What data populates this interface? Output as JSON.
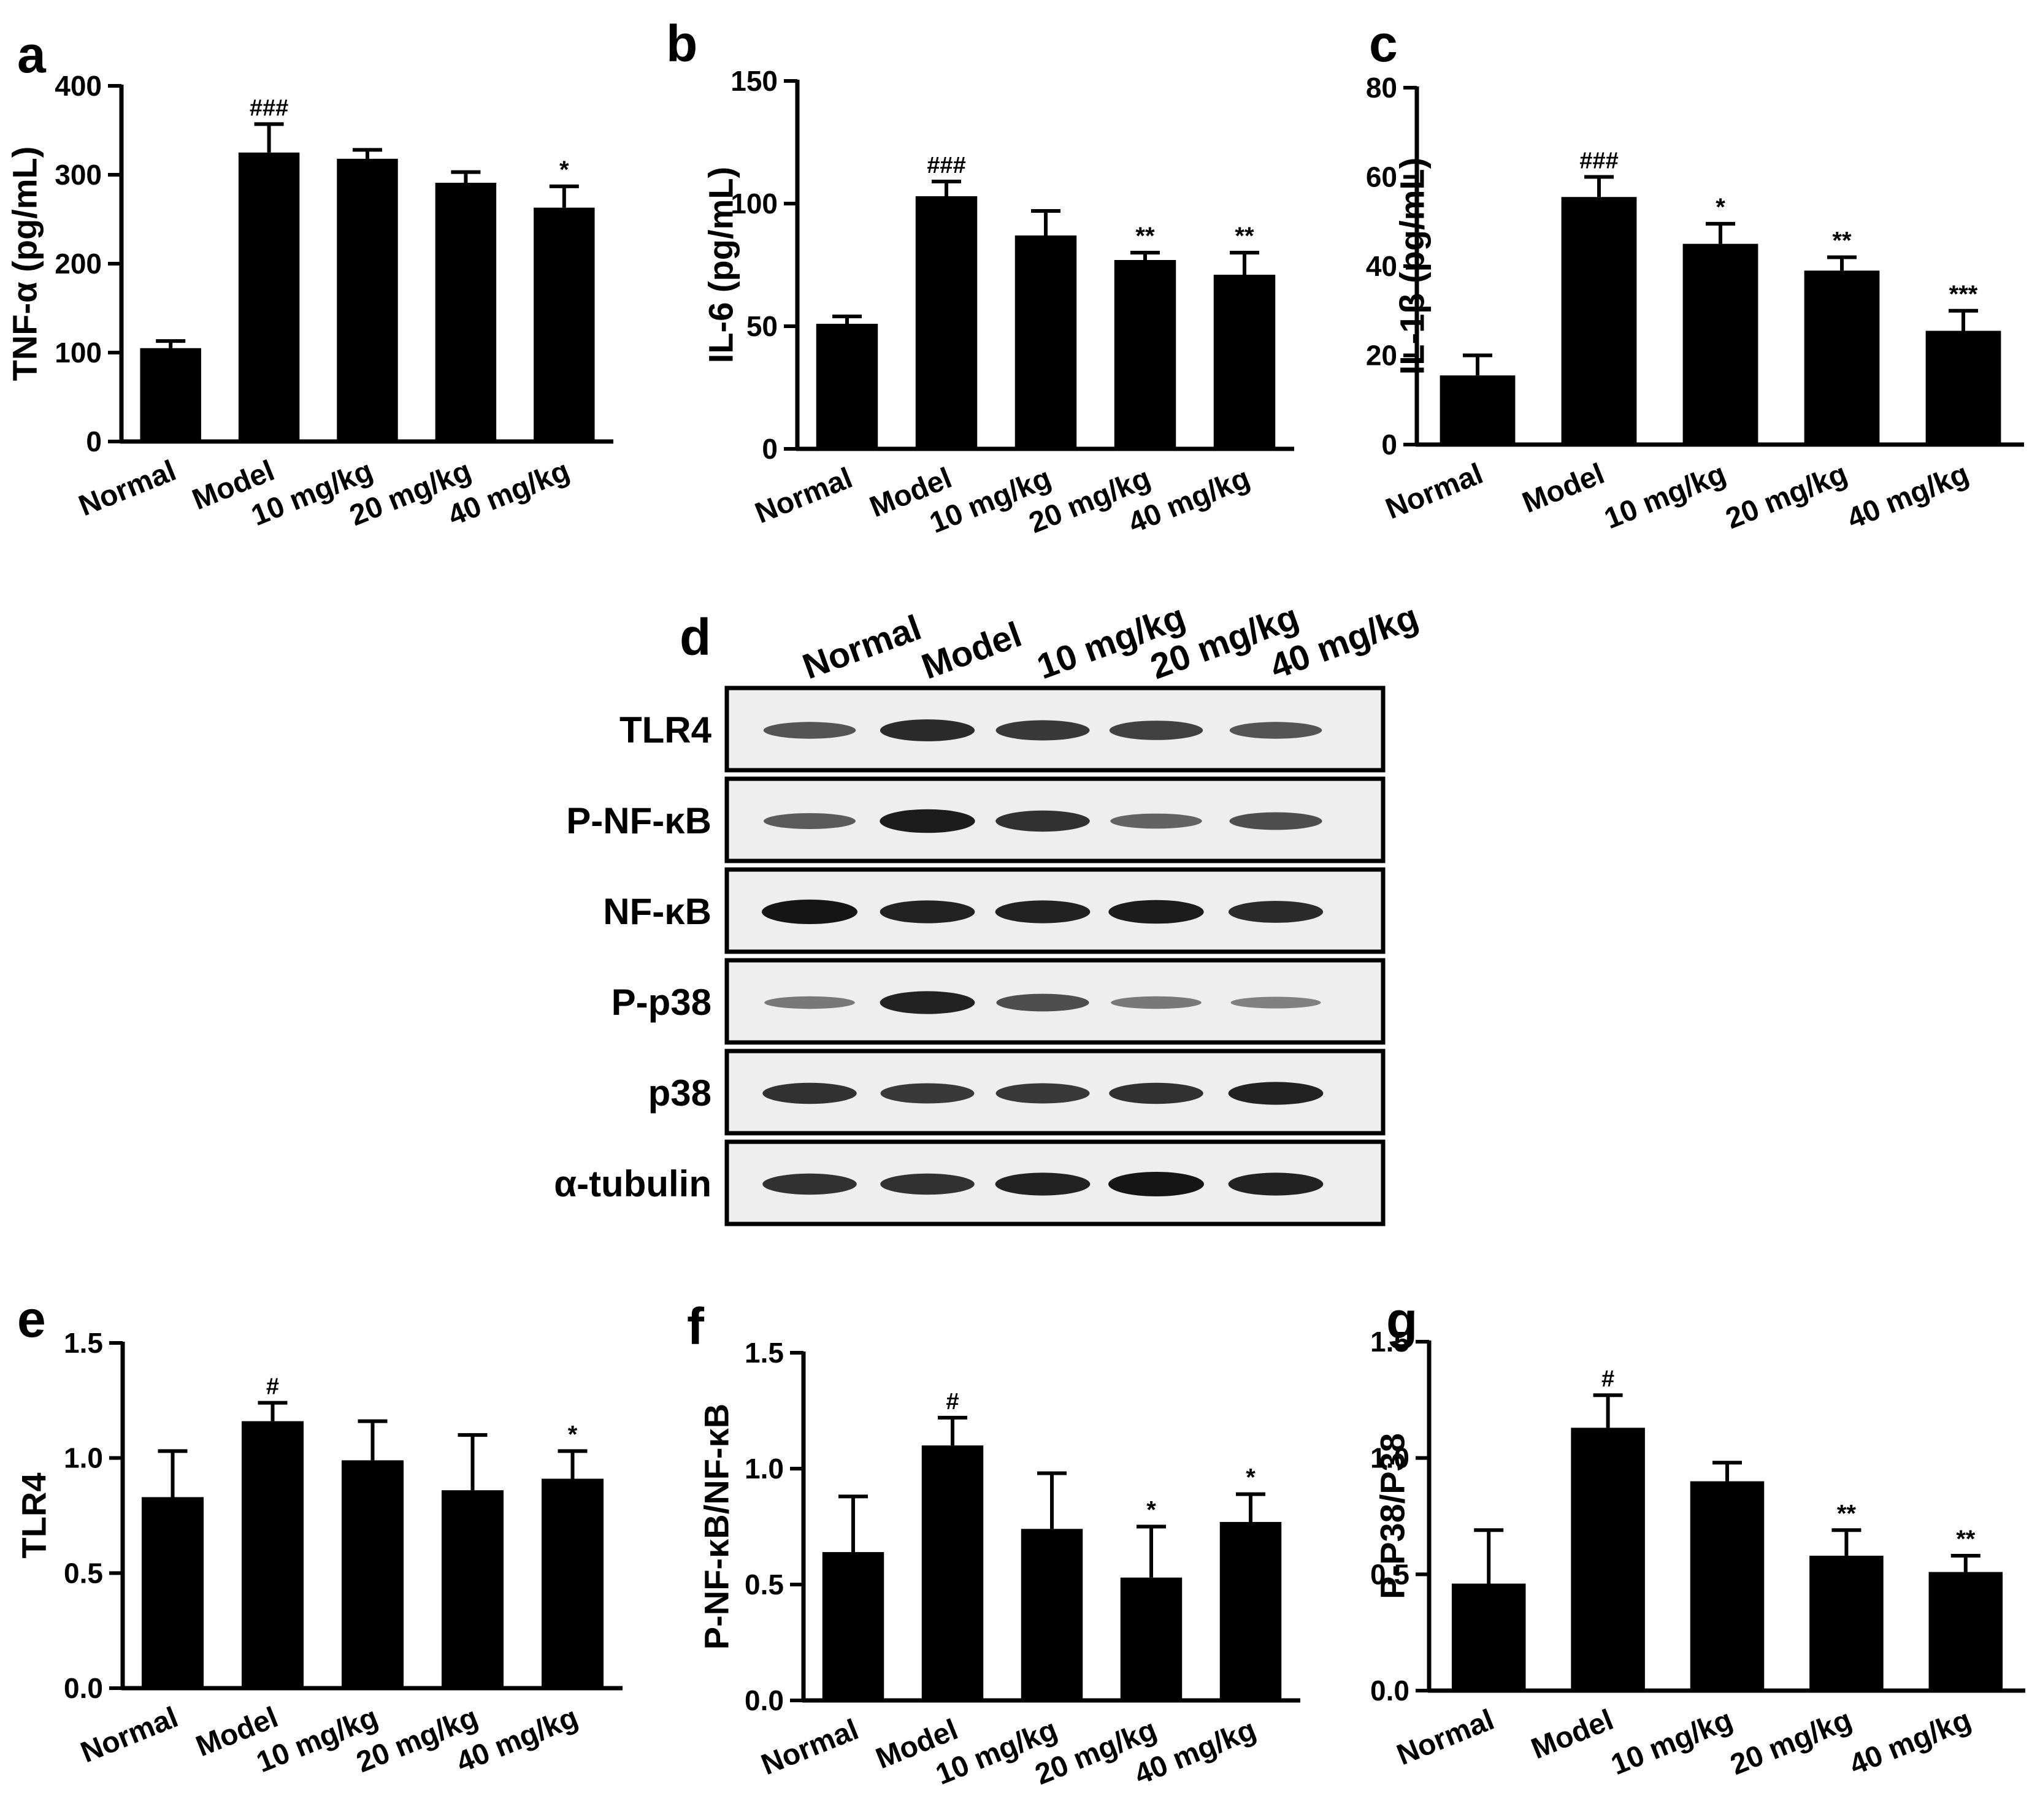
{
  "colors": {
    "bar": "#000000",
    "axis": "#000000",
    "blot_bg": "#eeeeee",
    "band": "#151515"
  },
  "chart_data": [
    {
      "panel": "a",
      "type": "bar",
      "categories": [
        "Normal",
        "Model",
        "10 mg/kg",
        "20 mg/kg",
        "40 mg/kg"
      ],
      "values": [
        105,
        325,
        318,
        291,
        263
      ],
      "errors": [
        8,
        32,
        10,
        12,
        24
      ],
      "annotations": [
        "",
        "###",
        "",
        "",
        "*"
      ],
      "ylabel": "TNF-α (pg/mL)",
      "ylim": [
        0,
        400
      ],
      "yticks": [
        0,
        100,
        200,
        300,
        400
      ],
      "grid": false,
      "legend": "none"
    },
    {
      "panel": "b",
      "type": "bar",
      "categories": [
        "Normal",
        "Model",
        "10 mg/kg",
        "20 mg/kg",
        "40 mg/kg"
      ],
      "values": [
        51,
        103,
        87,
        77,
        71
      ],
      "errors": [
        3,
        6,
        10,
        3,
        9
      ],
      "annotations": [
        "",
        "###",
        "",
        "**",
        "**"
      ],
      "ylabel": "IL-6 (pg/mL)",
      "ylim": [
        0,
        150
      ],
      "yticks": [
        0,
        50,
        100,
        150
      ],
      "grid": false,
      "legend": "none"
    },
    {
      "panel": "c",
      "type": "bar",
      "categories": [
        "Normal",
        "Model",
        "10 mg/kg",
        "20 mg/kg",
        "40 mg/kg"
      ],
      "values": [
        15.5,
        55.5,
        45,
        39,
        25.5
      ],
      "errors": [
        4.5,
        4.5,
        4.5,
        3,
        4.5
      ],
      "annotations": [
        "",
        "###",
        "*",
        "**",
        "***"
      ],
      "ylabel": "IL-1β (pg/mL)",
      "ylim": [
        0,
        80
      ],
      "yticks": [
        0,
        20,
        40,
        60,
        80
      ],
      "grid": false,
      "legend": "none"
    },
    {
      "panel": "e",
      "type": "bar",
      "categories": [
        "Normal",
        "Model",
        "10 mg/kg",
        "20 mg/kg",
        "40 mg/kg"
      ],
      "values": [
        0.83,
        1.16,
        0.99,
        0.86,
        0.91
      ],
      "errors": [
        0.2,
        0.08,
        0.17,
        0.24,
        0.12
      ],
      "annotations": [
        "",
        "#",
        "",
        "",
        "*"
      ],
      "ylabel": "TLR4",
      "ylim": [
        0,
        1.5
      ],
      "yticks": [
        "0.0",
        "0.5",
        "1.0",
        "1.5"
      ],
      "grid": false,
      "legend": "none"
    },
    {
      "panel": "f",
      "type": "bar",
      "categories": [
        "Normal",
        "Model",
        "10 mg/kg",
        "20 mg/kg",
        "40 mg/kg"
      ],
      "values": [
        0.64,
        1.1,
        0.74,
        0.53,
        0.77
      ],
      "errors": [
        0.24,
        0.12,
        0.24,
        0.22,
        0.12
      ],
      "annotations": [
        "",
        "#",
        "",
        "*",
        "*"
      ],
      "ylabel": "P-NF-κB/NF-κB",
      "ylim": [
        0,
        1.5
      ],
      "yticks": [
        "0.0",
        "0.5",
        "1.0",
        "1.5"
      ],
      "grid": false,
      "legend": "none"
    },
    {
      "panel": "g",
      "type": "bar",
      "categories": [
        "Normal",
        "Model",
        "10 mg/kg",
        "20 mg/kg",
        "40 mg/kg"
      ],
      "values": [
        0.46,
        1.13,
        0.9,
        0.58,
        0.51
      ],
      "errors": [
        0.23,
        0.14,
        0.08,
        0.11,
        0.07
      ],
      "annotations": [
        "",
        "#",
        "",
        "**",
        "**"
      ],
      "ylabel": "P-P38/P38",
      "ylim": [
        0,
        1.5
      ],
      "yticks": [
        "0.0",
        "0.5",
        "1.0",
        "1.5"
      ],
      "grid": false,
      "legend": "none"
    }
  ],
  "blot": {
    "panel": "d",
    "lanes": [
      "Normal",
      "Model",
      "10 mg/kg",
      "20 mg/kg",
      "40 mg/kg"
    ],
    "rows": [
      {
        "label": "TLR4",
        "intensity": [
          0.55,
          0.85,
          0.75,
          0.7,
          0.55
        ]
      },
      {
        "label": "P-NF-κB",
        "intensity": [
          0.5,
          0.95,
          0.8,
          0.45,
          0.6
        ]
      },
      {
        "label": "NF-κB",
        "intensity": [
          1.0,
          0.9,
          0.9,
          0.95,
          0.85
        ]
      },
      {
        "label": "P-p38",
        "intensity": [
          0.3,
          0.9,
          0.6,
          0.3,
          0.25
        ]
      },
      {
        "label": "p38",
        "intensity": [
          0.8,
          0.75,
          0.75,
          0.8,
          0.9
        ]
      },
      {
        "label": "α-tubulin",
        "intensity": [
          0.8,
          0.8,
          0.9,
          1.0,
          0.9
        ]
      }
    ]
  }
}
